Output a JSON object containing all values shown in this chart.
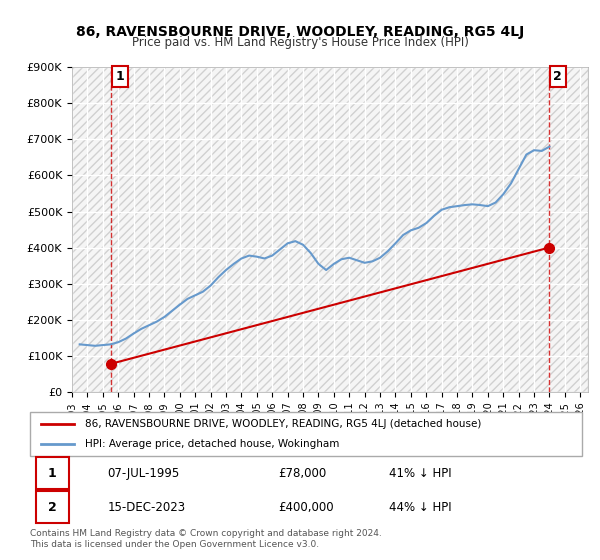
{
  "title": "86, RAVENSBOURNE DRIVE, WOODLEY, READING, RG5 4LJ",
  "subtitle": "Price paid vs. HM Land Registry's House Price Index (HPI)",
  "ylabel": "",
  "xlabel": "",
  "ylim": [
    0,
    900000
  ],
  "yticks": [
    0,
    100000,
    200000,
    300000,
    400000,
    500000,
    600000,
    700000,
    800000,
    900000
  ],
  "ytick_labels": [
    "£0",
    "£100K",
    "£200K",
    "£300K",
    "£400K",
    "£500K",
    "£600K",
    "£700K",
    "£800K",
    "£900K"
  ],
  "xlim_start": 1993.0,
  "xlim_end": 2026.5,
  "xticks": [
    1993,
    1994,
    1995,
    1996,
    1997,
    1998,
    1999,
    2000,
    2001,
    2002,
    2003,
    2004,
    2005,
    2006,
    2007,
    2008,
    2009,
    2010,
    2011,
    2012,
    2013,
    2014,
    2015,
    2016,
    2017,
    2018,
    2019,
    2020,
    2021,
    2022,
    2023,
    2024,
    2025,
    2026
  ],
  "sale1_x": 1995.52,
  "sale1_y": 78000,
  "sale1_label": "1",
  "sale1_date": "07-JUL-1995",
  "sale1_price": "£78,000",
  "sale1_hpi": "41% ↓ HPI",
  "sale2_x": 2023.96,
  "sale2_y": 400000,
  "sale2_label": "2",
  "sale2_date": "15-DEC-2023",
  "sale2_price": "£400,000",
  "sale2_hpi": "44% ↓ HPI",
  "price_color": "#cc0000",
  "hpi_color": "#6699cc",
  "background_color": "#f5f5f5",
  "hatch_color": "#cccccc",
  "grid_color": "#ffffff",
  "legend_line1": "86, RAVENSBOURNE DRIVE, WOODLEY, READING, RG5 4LJ (detached house)",
  "legend_line2": "HPI: Average price, detached house, Wokingham",
  "footer": "Contains HM Land Registry data © Crown copyright and database right 2024.\nThis data is licensed under the Open Government Licence v3.0.",
  "hpi_data_x": [
    1993.5,
    1994.0,
    1994.5,
    1995.0,
    1995.5,
    1996.0,
    1996.5,
    1997.0,
    1997.5,
    1998.0,
    1998.5,
    1999.0,
    1999.5,
    2000.0,
    2000.5,
    2001.0,
    2001.5,
    2002.0,
    2002.5,
    2003.0,
    2003.5,
    2004.0,
    2004.5,
    2005.0,
    2005.5,
    2006.0,
    2006.5,
    2007.0,
    2007.5,
    2008.0,
    2008.5,
    2009.0,
    2009.5,
    2010.0,
    2010.5,
    2011.0,
    2011.5,
    2012.0,
    2012.5,
    2013.0,
    2013.5,
    2014.0,
    2014.5,
    2015.0,
    2015.5,
    2016.0,
    2016.5,
    2017.0,
    2017.5,
    2018.0,
    2018.5,
    2019.0,
    2019.5,
    2020.0,
    2020.5,
    2021.0,
    2021.5,
    2022.0,
    2022.5,
    2023.0,
    2023.5,
    2024.0
  ],
  "hpi_data_y": [
    132000,
    130000,
    128000,
    130000,
    132000,
    138000,
    148000,
    162000,
    175000,
    185000,
    195000,
    208000,
    225000,
    242000,
    258000,
    268000,
    278000,
    295000,
    318000,
    338000,
    355000,
    370000,
    378000,
    375000,
    370000,
    378000,
    395000,
    412000,
    418000,
    408000,
    385000,
    355000,
    338000,
    355000,
    368000,
    372000,
    365000,
    358000,
    362000,
    372000,
    390000,
    412000,
    435000,
    448000,
    455000,
    468000,
    488000,
    505000,
    512000,
    515000,
    518000,
    520000,
    518000,
    515000,
    525000,
    548000,
    578000,
    618000,
    658000,
    670000,
    668000,
    680000
  ],
  "price_data_x": [
    1995.52,
    2023.96
  ],
  "price_data_y": [
    78000,
    400000
  ]
}
